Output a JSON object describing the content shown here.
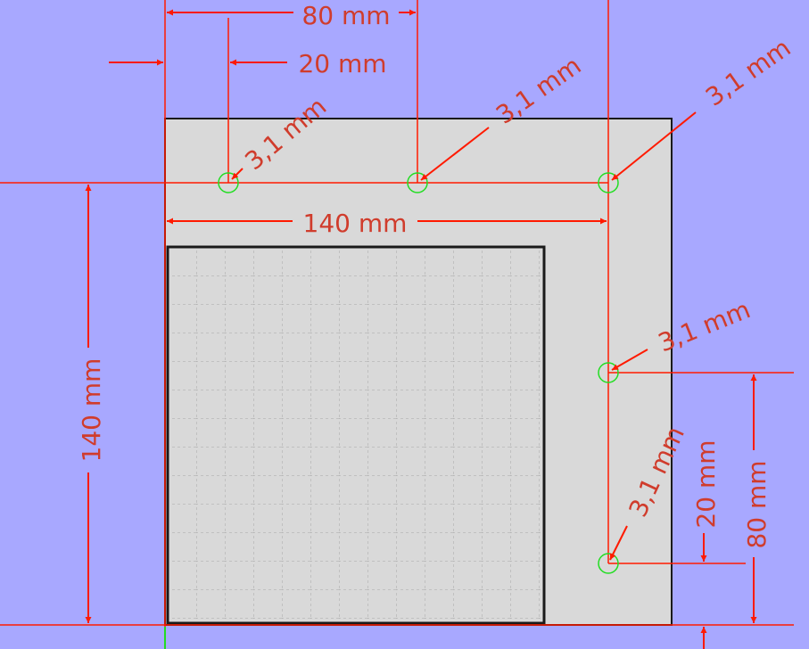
{
  "colors": {
    "background": "#a8a8ff",
    "plate_fill": "#d9d9d9",
    "outline": "#1a1a1a",
    "dimension": "#ff2200",
    "dimension_text": "#d03c2c",
    "hole_marker": "#22dd22",
    "grid": "#a8a8a8"
  },
  "dimensions": {
    "top_80": "80 mm",
    "top_20": "20 mm",
    "inner_140": "140 mm",
    "left_140": "140 mm",
    "right_20": "20 mm",
    "right_80": "80 mm"
  },
  "holes": {
    "hole_1": "3,1 mm",
    "hole_2": "3,1 mm",
    "hole_3": "3,1 mm",
    "hole_4": "3,1 mm",
    "hole_5": "3,1 mm"
  }
}
